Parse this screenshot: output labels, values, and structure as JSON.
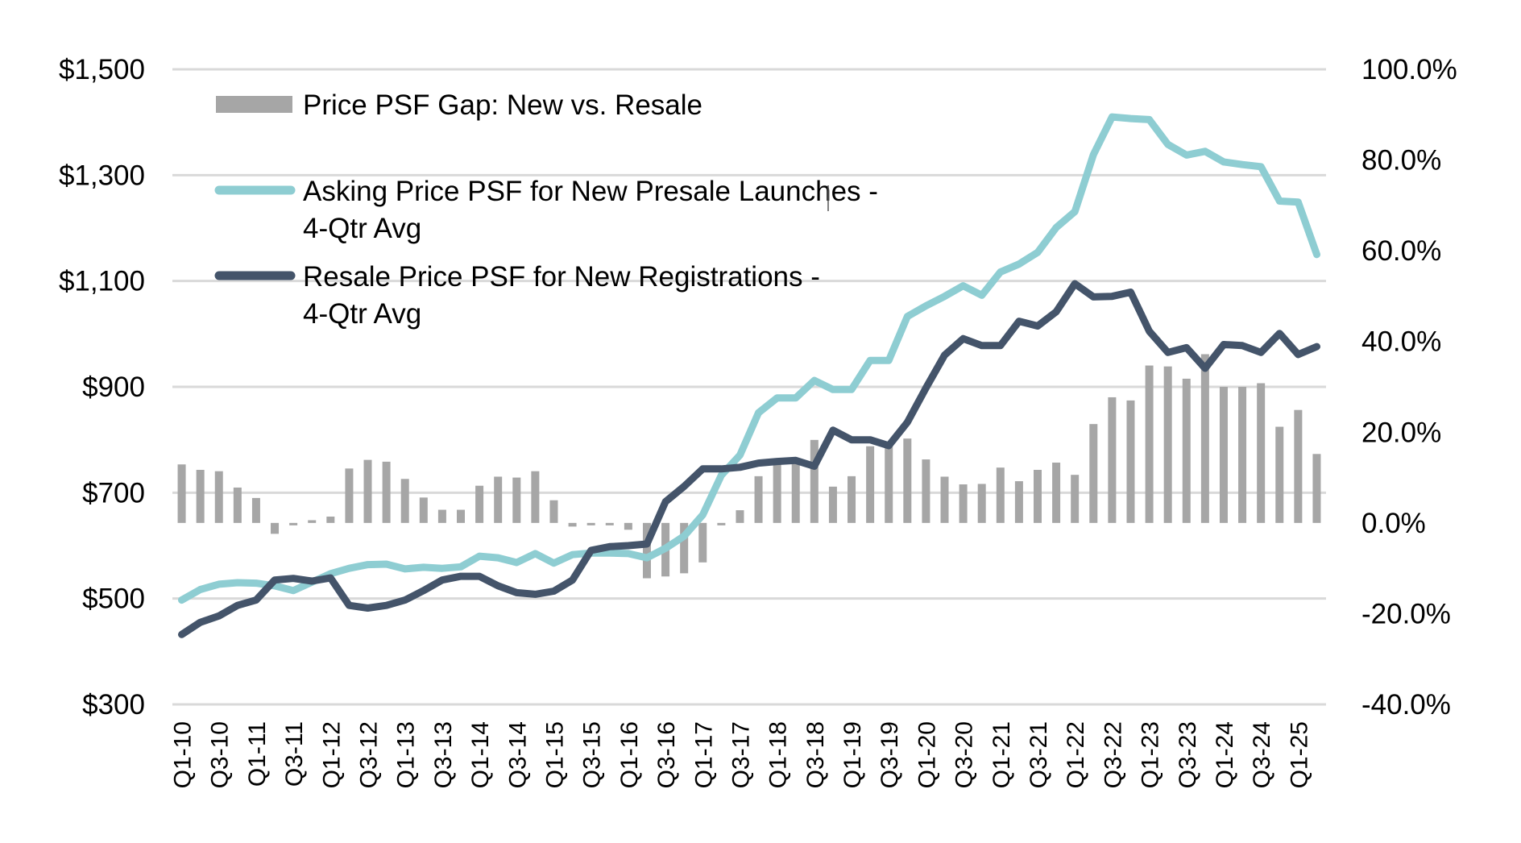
{
  "chart_data": {
    "type": "bar+line",
    "title": "",
    "xlabel": "",
    "ylabel_left": "",
    "ylabel_right": "",
    "grid": true,
    "legend_position": "top-left",
    "left_axis": {
      "ylim": [
        300,
        1500
      ],
      "ticks": [
        300,
        500,
        700,
        900,
        1100,
        1300,
        1500
      ],
      "tick_labels": [
        "$300",
        "$500",
        "$700",
        "$900",
        "$1,100",
        "$1,300",
        "$1,500"
      ]
    },
    "right_axis": {
      "ylim": [
        -40,
        100
      ],
      "ticks": [
        -40,
        -20,
        0,
        20,
        40,
        60,
        80,
        100
      ],
      "tick_labels": [
        "-40.0%",
        "-20.0%",
        "0.0%",
        "20.0%",
        "40.0%",
        "60.0%",
        "80.0%",
        "100.0%"
      ]
    },
    "categories": [
      "Q1-10",
      "Q2-10",
      "Q3-10",
      "Q4-10",
      "Q1-11",
      "Q2-11",
      "Q3-11",
      "Q4-11",
      "Q1-12",
      "Q2-12",
      "Q3-12",
      "Q4-12",
      "Q1-13",
      "Q2-13",
      "Q3-13",
      "Q4-13",
      "Q1-14",
      "Q2-14",
      "Q3-14",
      "Q4-14",
      "Q1-15",
      "Q2-15",
      "Q3-15",
      "Q4-15",
      "Q1-16",
      "Q2-16",
      "Q3-16",
      "Q4-16",
      "Q1-17",
      "Q2-17",
      "Q3-17",
      "Q4-17",
      "Q1-18",
      "Q2-18",
      "Q3-18",
      "Q4-18",
      "Q1-19",
      "Q2-19",
      "Q3-19",
      "Q4-19",
      "Q1-20",
      "Q2-20",
      "Q3-20",
      "Q4-20",
      "Q1-21",
      "Q2-21",
      "Q3-21",
      "Q4-21",
      "Q1-22",
      "Q2-22",
      "Q3-22",
      "Q4-22",
      "Q1-23",
      "Q2-23",
      "Q3-23",
      "Q4-23",
      "Q1-24",
      "Q2-24",
      "Q3-24",
      "Q4-24",
      "Q1-25",
      "Q2-25"
    ],
    "x_tick_labels": [
      "Q1-10",
      "Q3-10",
      "Q1-11",
      "Q3-11",
      "Q1-12",
      "Q3-12",
      "Q1-13",
      "Q3-13",
      "Q1-14",
      "Q3-14",
      "Q1-15",
      "Q3-15",
      "Q1-16",
      "Q3-16",
      "Q1-17",
      "Q3-17",
      "Q1-18",
      "Q3-18",
      "Q1-19",
      "Q3-19",
      "Q1-20",
      "Q3-20",
      "Q1-21",
      "Q3-21",
      "Q1-22",
      "Q3-22",
      "Q1-23",
      "Q3-23",
      "Q1-24",
      "Q3-24",
      "Q1-25"
    ],
    "series": [
      {
        "name": "Price PSF Gap: New vs. Resale",
        "type": "bar",
        "axis": "right",
        "unit": "%",
        "color": "#a6a6a6",
        "values": [
          12.9,
          11.7,
          11.4,
          7.8,
          5.5,
          -2.4,
          -0.3,
          0.6,
          1.4,
          12.0,
          13.9,
          13.5,
          9.7,
          5.6,
          2.9,
          2.9,
          8.2,
          10.2,
          10.0,
          11.4,
          5.0,
          -0.8,
          -0.5,
          -0.5,
          -1.5,
          -12.2,
          -11.8,
          -11.1,
          -8.7,
          -0.5,
          2.8,
          10.3,
          14.1,
          14.0,
          18.3,
          8.0,
          10.3,
          16.9,
          17.4,
          18.6,
          14.0,
          10.2,
          8.5,
          8.6,
          12.2,
          9.2,
          11.7,
          13.3,
          10.6,
          21.8,
          27.7,
          27.0,
          34.7,
          34.5,
          31.8,
          37.2,
          30.0,
          30.0,
          30.8,
          21.2,
          24.9,
          15.2
        ]
      },
      {
        "name": "Asking Price PSF for New Presale Launches - 4-Qtr Avg",
        "type": "line",
        "axis": "left",
        "unit": "$",
        "color": "#8ecdd2",
        "values": [
          497,
          517,
          527,
          530,
          529,
          524,
          515,
          531,
          547,
          557,
          564,
          565,
          556,
          559,
          557,
          560,
          580,
          577,
          568,
          585,
          567,
          583,
          586,
          586,
          585,
          577,
          595,
          618,
          658,
          733,
          771,
          851,
          879,
          879,
          912,
          895,
          895,
          950,
          950,
          1033,
          1053,
          1071,
          1091,
          1073,
          1117,
          1132,
          1154,
          1201,
          1231,
          1339,
          1410,
          1407,
          1405,
          1358,
          1338,
          1345,
          1325,
          1320,
          1316,
          1251,
          1249,
          1150
        ]
      },
      {
        "name": "Resale Price PSF for New Registrations - 4-Qtr Avg",
        "type": "line",
        "axis": "left",
        "unit": "$",
        "color": "#44546a",
        "values": [
          432,
          455,
          467,
          487,
          497,
          535,
          538,
          533,
          539,
          487,
          482,
          487,
          497,
          515,
          535,
          542,
          542,
          524,
          511,
          508,
          514,
          535,
          591,
          598,
          600,
          603,
          683,
          712,
          745,
          745,
          748,
          756,
          759,
          761,
          750,
          818,
          800,
          800,
          789,
          833,
          898,
          960,
          991,
          978,
          978,
          1024,
          1015,
          1042,
          1095,
          1070,
          1071,
          1079,
          1005,
          965,
          974,
          935,
          980,
          978,
          965,
          1001,
          961,
          976
        ]
      }
    ]
  },
  "legend": {
    "items": [
      {
        "label_lines": [
          "Price PSF Gap: New vs. Resale"
        ],
        "swatch": "bar"
      },
      {
        "label_lines": [
          "Asking Price PSF for New Presale Launches -",
          "4-Qtr Avg"
        ],
        "swatch": "line"
      },
      {
        "label_lines": [
          "Resale Price PSF for New Registrations -",
          "4-Qtr Avg"
        ],
        "swatch": "line"
      }
    ]
  }
}
